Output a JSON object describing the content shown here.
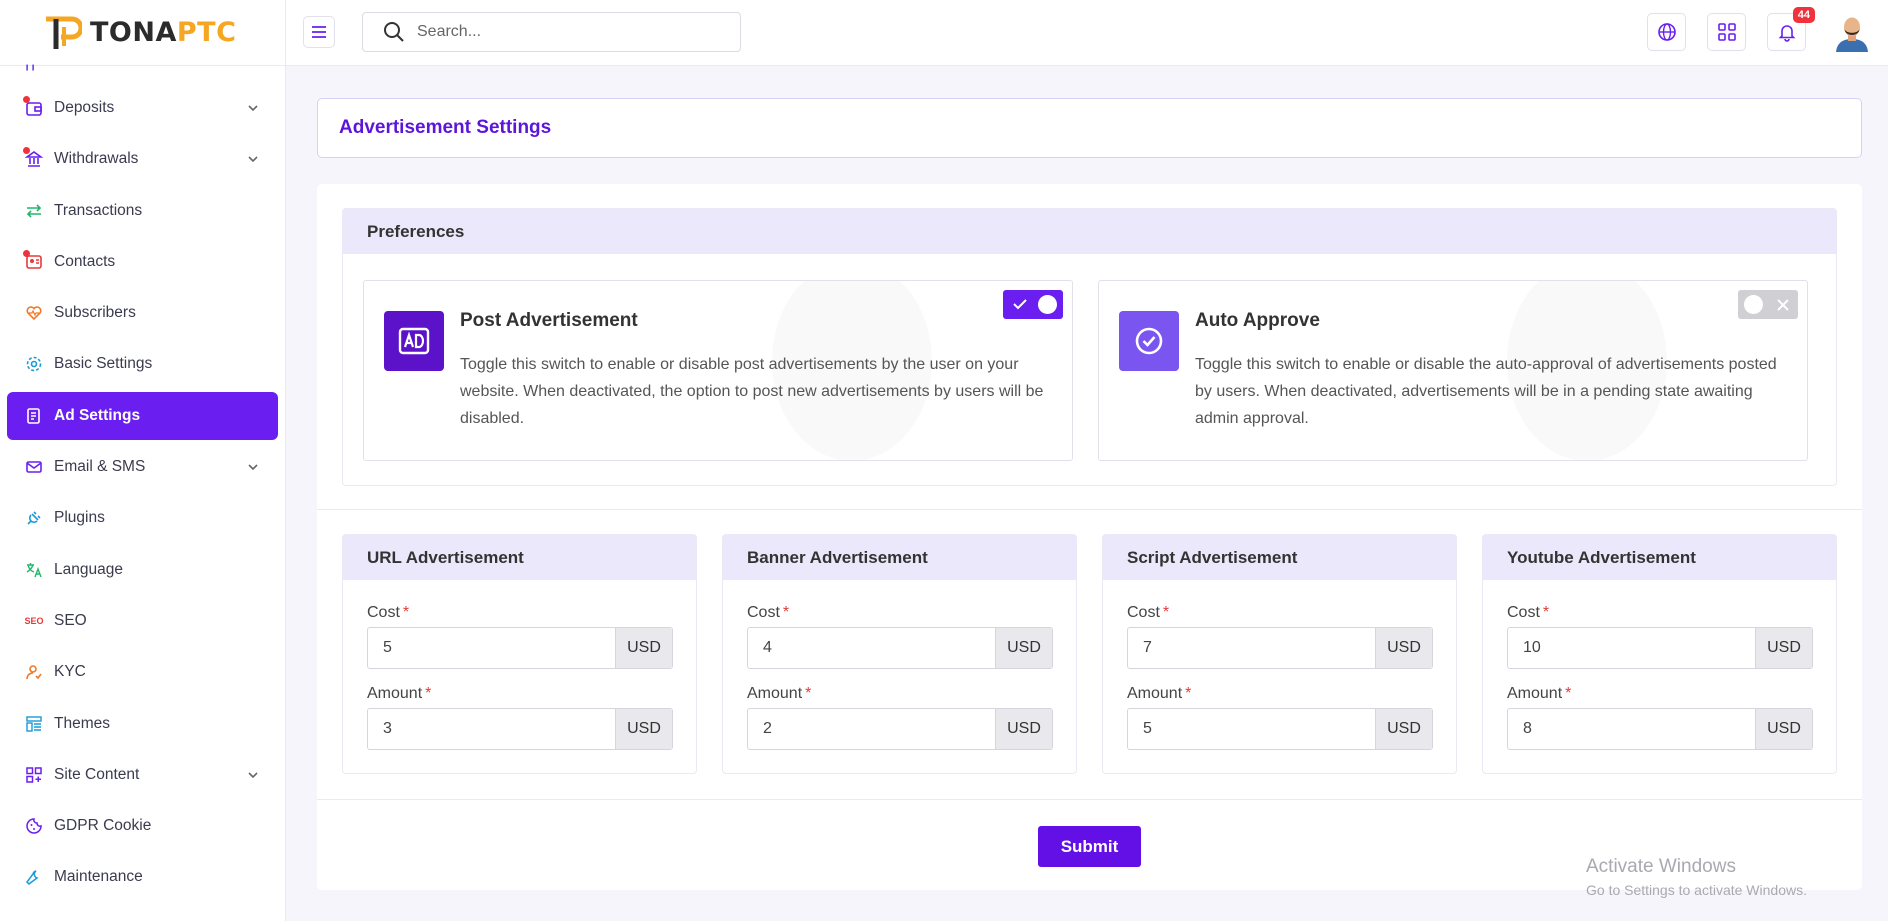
{
  "brand": {
    "part1": "TONA",
    "part2": "PTC"
  },
  "search": {
    "placeholder": "Search..."
  },
  "header": {
    "notification_count": "44"
  },
  "sidebar": {
    "items": [
      {
        "label": "Deposits"
      },
      {
        "label": "Withdrawals"
      },
      {
        "label": "Transactions"
      },
      {
        "label": "Contacts"
      },
      {
        "label": "Subscribers"
      },
      {
        "label": "Basic Settings"
      },
      {
        "label": "Ad Settings"
      },
      {
        "label": "Email & SMS"
      },
      {
        "label": "Plugins"
      },
      {
        "label": "Language"
      },
      {
        "label": "SEO",
        "icon_text": "SEO"
      },
      {
        "label": "KYC"
      },
      {
        "label": "Themes"
      },
      {
        "label": "Site Content"
      },
      {
        "label": "GDPR Cookie"
      },
      {
        "label": "Maintenance"
      }
    ]
  },
  "page": {
    "title": "Advertisement Settings"
  },
  "preferences": {
    "heading": "Preferences",
    "post_ad": {
      "title": "Post Advertisement",
      "description": "Toggle this switch to enable or disable post advertisements by the user on your website. When deactivated, the option to post new advertisements by users will be disabled.",
      "enabled": true
    },
    "auto_approve": {
      "title": "Auto Approve",
      "description": "Toggle this switch to enable or disable the auto-approval of advertisements posted by users. When deactivated, advertisements will be in a pending state awaiting admin approval.",
      "enabled": false
    }
  },
  "ad_types": [
    {
      "title": "URL Advertisement",
      "cost_label": "Cost",
      "cost": "5",
      "amount_label": "Amount",
      "amount": "3",
      "unit": "USD"
    },
    {
      "title": "Banner Advertisement",
      "cost_label": "Cost",
      "cost": "4",
      "amount_label": "Amount",
      "amount": "2",
      "unit": "USD"
    },
    {
      "title": "Script Advertisement",
      "cost_label": "Cost",
      "cost": "7",
      "amount_label": "Amount",
      "amount": "5",
      "unit": "USD"
    },
    {
      "title": "Youtube Advertisement",
      "cost_label": "Cost",
      "cost": "10",
      "amount_label": "Amount",
      "amount": "8",
      "unit": "USD"
    }
  ],
  "actions": {
    "submit": "Submit"
  },
  "watermark": {
    "line1": "Activate Windows",
    "line2": "Go to Settings to activate Windows."
  },
  "colors": {
    "accent": "#6a1ff0",
    "brand_orange": "#f5a623",
    "danger": "#f0323c"
  }
}
